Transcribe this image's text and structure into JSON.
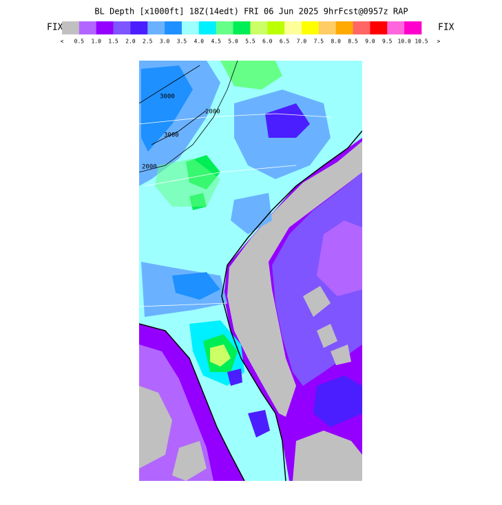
{
  "header": {
    "title": "BL Depth [x1000ft] 18Z(14edt) FRI 06 Jun 2025 9hrFcst@0957z RAP",
    "left_tag": "FIX",
    "right_tag": "FIX"
  },
  "legend": {
    "colors": [
      "#c0c0c0",
      "#b266ff",
      "#9400ff",
      "#7f55ff",
      "#4b1eff",
      "#6ab2ff",
      "#1e90ff",
      "#9effff",
      "#00f0ff",
      "#66ff88",
      "#00ee55",
      "#ccff66",
      "#bbff00",
      "#ffff99",
      "#ffff00",
      "#ffcc66",
      "#ffaa00",
      "#ff6666",
      "#ff0000",
      "#ff66dd",
      "#ff00cc"
    ],
    "labels": [
      "<",
      "0.5",
      "1.0",
      "1.5",
      "2.0",
      "2.5",
      "3.0",
      "3.5",
      "4.0",
      "4.5",
      "5.0",
      "5.5",
      "6.0",
      "6.5",
      "7.0",
      "7.5",
      "8.0",
      "8.5",
      "9.0",
      "9.5",
      "10.0",
      "10.5",
      ">"
    ]
  },
  "map": {
    "contour_labels": [
      "3000",
      "2000",
      "2000",
      "3000"
    ]
  }
}
